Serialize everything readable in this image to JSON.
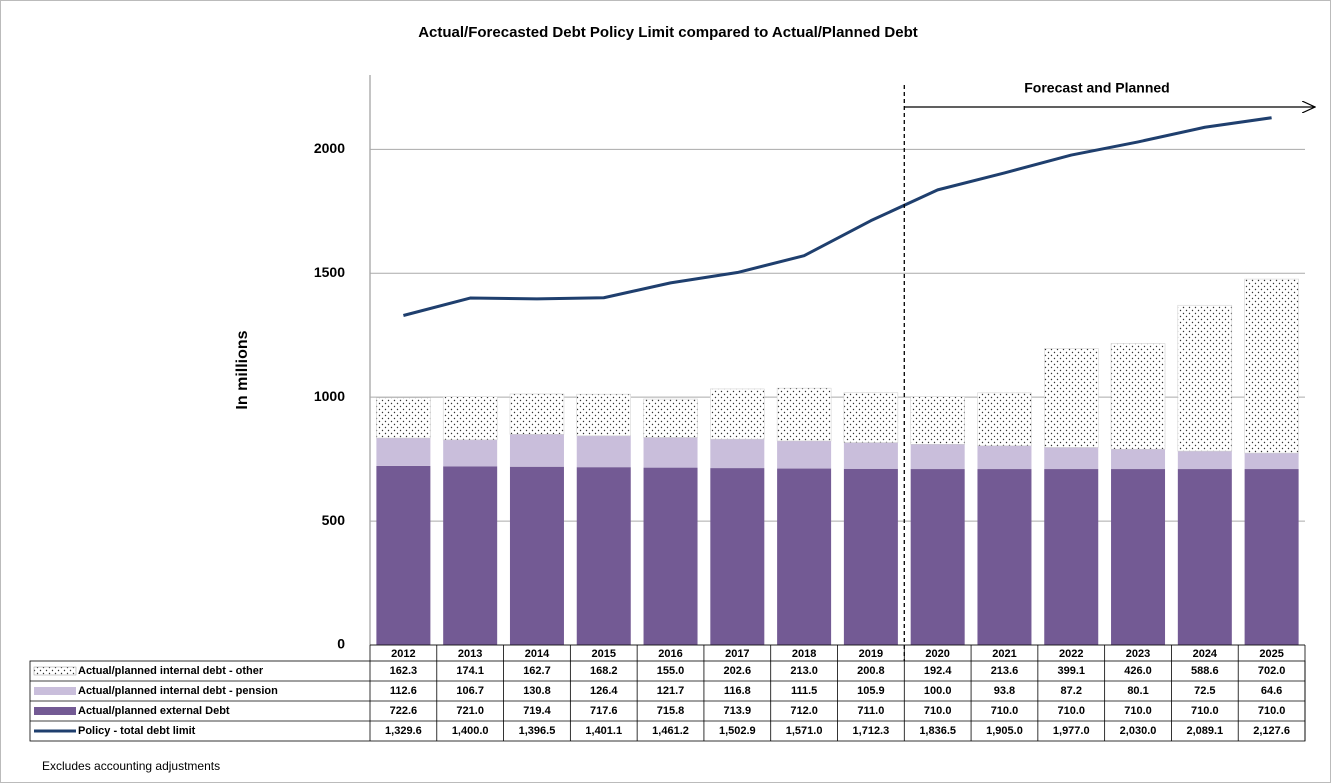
{
  "chart_data": {
    "type": "bar",
    "stacked": true,
    "title": "Actual/Forecasted Debt Policy Limit compared to Actual/Planned Debt",
    "ylabel": "In millions",
    "annotations": [
      "Forecast and Planned"
    ],
    "footnote": "Excludes accounting adjustments",
    "categories": [
      "2012",
      "2013",
      "2014",
      "2015",
      "2016",
      "2017",
      "2018",
      "2019",
      "2020",
      "2021",
      "2022",
      "2023",
      "2024",
      "2025"
    ],
    "series": [
      {
        "name": "Actual/planned internal debt - other",
        "color": "#ffffff",
        "pattern": "dotted",
        "values": [
          162.3,
          174.1,
          162.7,
          168.2,
          155.0,
          202.6,
          213.0,
          200.8,
          192.4,
          213.6,
          399.1,
          426.0,
          588.6,
          702.0
        ],
        "value_labels": [
          "162.3",
          "174.1",
          "162.7",
          "168.2",
          "155.0",
          "202.6",
          "213.0",
          "200.8",
          "192.4",
          "213.6",
          "399.1",
          "426.0",
          "588.6",
          "702.0"
        ]
      },
      {
        "name": "Actual/planned internal debt - pension",
        "color": "#c9bedb",
        "values": [
          112.6,
          106.7,
          130.8,
          126.4,
          121.7,
          116.8,
          111.5,
          105.9,
          100.0,
          93.8,
          87.2,
          80.1,
          72.5,
          64.6
        ],
        "value_labels": [
          "112.6",
          "106.7",
          "130.8",
          "126.4",
          "121.7",
          "116.8",
          "111.5",
          "105.9",
          "100.0",
          "93.8",
          "87.2",
          "80.1",
          "72.5",
          "64.6"
        ]
      },
      {
        "name": "Actual/planned external Debt",
        "color": "#735a94",
        "values": [
          722.6,
          721.0,
          719.4,
          717.6,
          715.8,
          713.9,
          712.0,
          711.0,
          710.0,
          710.0,
          710.0,
          710.0,
          710.0,
          710.0
        ],
        "value_labels": [
          "722.6",
          "721.0",
          "719.4",
          "717.6",
          "715.8",
          "713.9",
          "712.0",
          "711.0",
          "710.0",
          "710.0",
          "710.0",
          "710.0",
          "710.0",
          "710.0"
        ]
      },
      {
        "name": "Policy - total debt limit",
        "color": "#1f3f6e",
        "type": "line",
        "values": [
          1329.6,
          1400.0,
          1396.5,
          1401.1,
          1461.2,
          1502.9,
          1571.0,
          1712.3,
          1836.5,
          1905.0,
          1977.0,
          2030.0,
          2089.1,
          2127.6
        ],
        "value_labels": [
          "1,329.6",
          "1,400.0",
          "1,396.5",
          "1,401.1",
          "1,461.2",
          "1,502.9",
          "1,571.0",
          "1,712.3",
          "1,836.5",
          "1,905.0",
          "1,977.0",
          "2,030.0",
          "2,089.1",
          "2,127.6"
        ]
      }
    ],
    "ylim": [
      0,
      2300
    ],
    "yticks": [
      0,
      500,
      1000,
      1500,
      2000
    ],
    "grid": true
  }
}
